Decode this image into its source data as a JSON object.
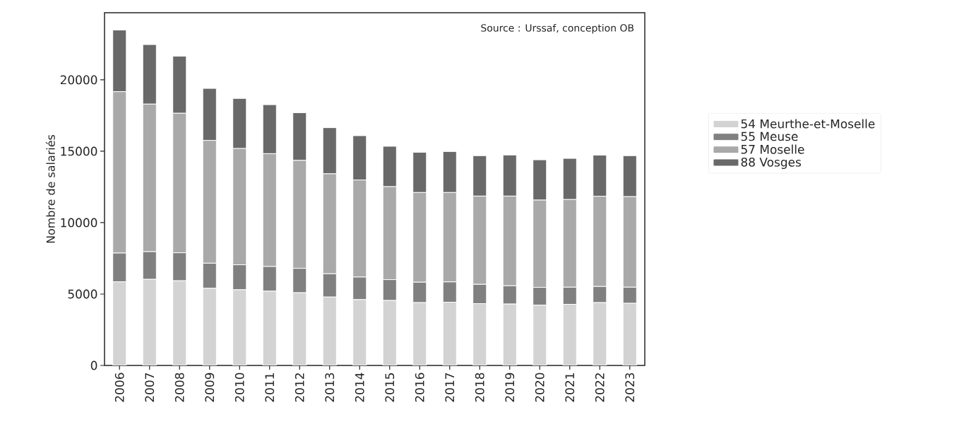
{
  "chart_data": {
    "type": "bar",
    "stacked": true,
    "ylabel": "Nombre de salariés",
    "annotations": [
      "Source : Urssaf, conception OB"
    ],
    "categories": [
      "2006",
      "2007",
      "2008",
      "2009",
      "2010",
      "2011",
      "2012",
      "2013",
      "2014",
      "2015",
      "2016",
      "2017",
      "2018",
      "2019",
      "2020",
      "2021",
      "2022",
      "2023"
    ],
    "series": [
      {
        "name": "54 Meurthe-et-Moselle",
        "color": "#d3d3d3",
        "values": [
          5860,
          6030,
          5930,
          5400,
          5300,
          5200,
          5090,
          4790,
          4610,
          4550,
          4400,
          4430,
          4330,
          4300,
          4220,
          4280,
          4400,
          4350
        ]
      },
      {
        "name": "55 Meuse",
        "color": "#808080",
        "values": [
          2010,
          1940,
          1960,
          1760,
          1750,
          1730,
          1710,
          1630,
          1580,
          1460,
          1430,
          1420,
          1350,
          1280,
          1250,
          1200,
          1130,
          1130
        ]
      },
      {
        "name": "57 Moselle",
        "color": "#a9a9a9",
        "values": [
          11300,
          10330,
          9770,
          8600,
          8140,
          7900,
          7560,
          7000,
          6800,
          6510,
          6280,
          6260,
          6180,
          6280,
          6110,
          6140,
          6320,
          6340
        ]
      },
      {
        "name": "88 Vosges",
        "color": "#696969",
        "values": [
          4320,
          4170,
          4000,
          3640,
          3510,
          3430,
          3340,
          3230,
          3100,
          2830,
          2820,
          2870,
          2830,
          2880,
          2820,
          2880,
          2880,
          2870
        ]
      }
    ],
    "ylim": [
      0,
      24700
    ],
    "yticks": [
      0,
      5000,
      10000,
      15000,
      20000
    ],
    "grid": false,
    "legend": "right"
  }
}
